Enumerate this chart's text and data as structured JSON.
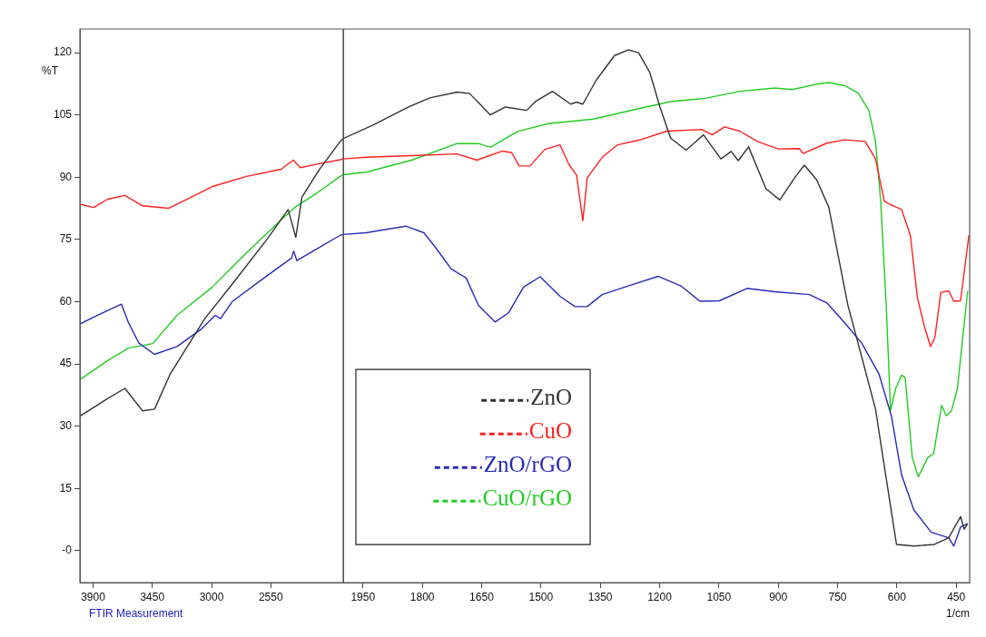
{
  "chart_data": [
    {
      "type": "line",
      "ylabel": "%T",
      "annotations": [
        "FTIR Measurement"
      ],
      "xlim": [
        4000,
        2000
      ],
      "xticks": [
        3900,
        3450,
        3000,
        2550
      ],
      "ylim": [
        -7.7,
        125.7
      ],
      "yticks": [
        {
          "value": 0,
          "label": "-0"
        },
        15,
        30,
        45,
        60,
        75,
        90,
        105,
        120
      ],
      "marker": "none",
      "line_style": "solid",
      "series": [
        {
          "color": "#333333",
          "x": [
            4000,
            3791,
            3658,
            3525,
            3433,
            3315,
            3051,
            2841,
            2577,
            2418,
            2360,
            2313,
            2180,
            2023,
            2000
          ],
          "values": [
            32.4,
            36.6,
            39.1,
            33.7,
            34.1,
            42.5,
            55.9,
            64.3,
            75.1,
            82.2,
            75.5,
            85.2,
            91.9,
            98.6,
            99.3
          ]
        },
        {
          "color": "#ff2020",
          "x": [
            4000,
            3895,
            3789,
            3658,
            3525,
            3328,
            3183,
            2998,
            2734,
            2471,
            2379,
            2326,
            2207,
            2023,
            2000
          ],
          "values": [
            83.5,
            82.7,
            84.7,
            85.6,
            83.1,
            82.5,
            84.7,
            87.7,
            90.2,
            91.9,
            94.1,
            92.3,
            93.1,
            94.2,
            94.4
          ]
        },
        {
          "color": "#2a2ab8",
          "x": [
            4000,
            3869,
            3684,
            3632,
            3552,
            3433,
            3262,
            3077,
            2972,
            2932,
            2840,
            2576,
            2392,
            2376,
            2352,
            2207,
            2023,
            2000
          ],
          "values": [
            54.6,
            56.7,
            59.4,
            55.0,
            50.0,
            47.3,
            49.2,
            53.4,
            56.7,
            55.9,
            60.1,
            66.3,
            70.5,
            72.2,
            69.9,
            72.6,
            76.0,
            76.2
          ]
        },
        {
          "color": "#22cc22",
          "x": [
            4000,
            3789,
            3632,
            3447,
            3262,
            2998,
            2734,
            2471,
            2365,
            2207,
            2023,
            2000
          ],
          "values": [
            41.2,
            45.8,
            48.8,
            49.9,
            56.7,
            63.4,
            71.8,
            79.7,
            82.8,
            86.0,
            90.2,
            90.6
          ]
        }
      ]
    },
    {
      "type": "line",
      "xlabel": "1/cm",
      "xlim": [
        2000,
        416
      ],
      "xticks": [
        1950,
        1800,
        1650,
        1500,
        1350,
        1200,
        1050,
        900,
        750,
        600,
        450
      ],
      "ylim": [
        -7.7,
        125.7
      ],
      "tick_labels": "x",
      "legend": "bottom left",
      "marker": "none",
      "line_style": "solid",
      "series": [
        {
          "name": "ZnO",
          "color": "#333333",
          "x": [
            2000,
            1926,
            1835,
            1781,
            1712,
            1681,
            1658,
            1628,
            1590,
            1536,
            1513,
            1471,
            1425,
            1410,
            1394,
            1360,
            1314,
            1279,
            1253,
            1225,
            1199,
            1172,
            1133,
            1089,
            1045,
            1019,
            1001,
            975,
            931,
            896,
            856,
            834,
            803,
            772,
            750,
            724,
            689,
            654,
            627,
            601,
            557,
            505,
            469,
            439,
            430,
            421
          ],
          "values": [
            99.3,
            102.5,
            106.9,
            109.1,
            110.5,
            110.2,
            108.0,
            105.0,
            106.9,
            106.1,
            108.3,
            110.7,
            107.6,
            108.1,
            107.6,
            113.4,
            119.3,
            120.7,
            120.0,
            115.3,
            106.9,
            99.4,
            96.5,
            100.2,
            94.4,
            96.2,
            94.0,
            97.3,
            87.2,
            84.5,
            90.2,
            92.9,
            89.4,
            82.7,
            71.8,
            59.2,
            46.7,
            34.1,
            17.4,
            1.5,
            1.1,
            1.5,
            3.1,
            8.2,
            5.2,
            6.5
          ]
        },
        {
          "name": "CuO",
          "color": "#ff2020",
          "x": [
            2000,
            1942,
            1827,
            1712,
            1662,
            1597,
            1574,
            1555,
            1528,
            1490,
            1452,
            1429,
            1410,
            1394,
            1383,
            1345,
            1306,
            1253,
            1181,
            1093,
            1067,
            1036,
            997,
            953,
            900,
            847,
            837,
            777,
            733,
            680,
            654,
            632,
            619,
            588,
            566,
            548,
            531,
            515,
            504,
            489,
            469,
            456,
            439,
            418
          ],
          "values": [
            94.4,
            94.8,
            95.2,
            95.6,
            94.1,
            96.3,
            95.9,
            92.7,
            92.7,
            96.7,
            97.8,
            93.0,
            90.5,
            79.5,
            89.8,
            94.8,
            97.8,
            98.9,
            101.1,
            101.5,
            100.2,
            102.1,
            101.1,
            98.6,
            96.8,
            96.9,
            95.7,
            98.2,
            99.0,
            98.6,
            94.4,
            84.3,
            83.5,
            82.2,
            76.0,
            60.9,
            54.2,
            49.2,
            51.3,
            62.2,
            62.6,
            60.1,
            60.2,
            76.0
          ]
        },
        {
          "name": "ZnO/rGO",
          "color": "#2a2ab8",
          "x": [
            2000,
            1942,
            1842,
            1796,
            1766,
            1727,
            1689,
            1658,
            1616,
            1582,
            1544,
            1502,
            1452,
            1414,
            1383,
            1345,
            1276,
            1203,
            1146,
            1098,
            1049,
            979,
            909,
            821,
            777,
            733,
            689,
            645,
            614,
            588,
            557,
            513,
            469,
            456,
            439,
            421
          ],
          "values": [
            76.2,
            76.6,
            78.2,
            76.6,
            73.0,
            67.9,
            65.7,
            59.1,
            55.1,
            57.3,
            63.5,
            66.0,
            61.3,
            58.8,
            58.8,
            61.7,
            63.9,
            66.1,
            63.8,
            60.1,
            60.2,
            63.2,
            62.4,
            61.7,
            59.7,
            55.0,
            50.0,
            42.5,
            32.5,
            18.2,
            9.8,
            4.4,
            3.1,
            1.1,
            5.7,
            6.5
          ]
        },
        {
          "name": "CuO/rGO",
          "color": "#22cc22",
          "x": [
            2000,
            1942,
            1827,
            1712,
            1658,
            1628,
            1559,
            1482,
            1368,
            1253,
            1172,
            1085,
            997,
            909,
            865,
            803,
            772,
            733,
            698,
            671,
            654,
            641,
            627,
            616,
            603,
            588,
            579,
            561,
            546,
            522,
            507,
            487,
            475,
            462,
            447,
            421
          ],
          "values": [
            90.6,
            91.2,
            94.1,
            98.1,
            98.1,
            97.2,
            101.0,
            102.9,
            104.0,
            106.5,
            108.2,
            109.0,
            110.7,
            111.5,
            111.1,
            112.4,
            112.8,
            112.1,
            110.3,
            106.1,
            98.6,
            84.3,
            59.2,
            33.7,
            39.1,
            42.3,
            41.7,
            22.4,
            17.8,
            22.4,
            23.4,
            35.0,
            32.5,
            33.7,
            39.1,
            62.6
          ]
        }
      ]
    }
  ]
}
